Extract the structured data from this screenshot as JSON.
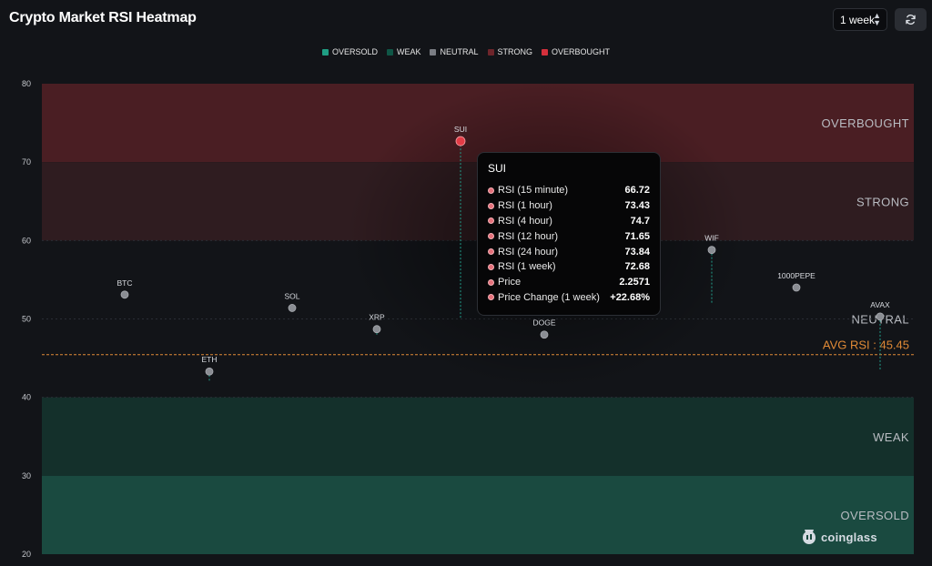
{
  "header": {
    "title": "Crypto Market RSI Heatmap",
    "period_value": "1 week",
    "refresh_icon": "refresh-icon"
  },
  "legend": [
    {
      "label": "OVERSOLD",
      "color": "#1f9e83"
    },
    {
      "label": "WEAK",
      "color": "#0f5646"
    },
    {
      "label": "NEUTRAL",
      "color": "#7b7e84"
    },
    {
      "label": "STRONG",
      "color": "#6e252b"
    },
    {
      "label": "OVERBOUGHT",
      "color": "#d5303c"
    }
  ],
  "colors": {
    "background": "#121418",
    "overbought_band": "#4a1e23",
    "strong_band": "#2f1c20",
    "weak_band": "#14302b",
    "oversold_band": "#1a4a40",
    "avg_line": "#e08a36",
    "point_neutral": "#8a8d93",
    "point_highlight": "#e23c46"
  },
  "chart_data": {
    "type": "scatter",
    "ylim": [
      20,
      80
    ],
    "yticks": [
      20,
      30,
      40,
      50,
      60,
      70,
      80
    ],
    "grid": false,
    "legend_position": "top-center",
    "zones": [
      {
        "label": "OVERBOUGHT",
        "min": 70,
        "max": 80
      },
      {
        "label": "STRONG",
        "min": 60,
        "max": 70
      },
      {
        "label": "NEUTRAL",
        "min": 40,
        "max": 60
      },
      {
        "label": "WEAK",
        "min": 30,
        "max": 40
      },
      {
        "label": "OVERSOLD",
        "min": 20,
        "max": 30
      }
    ],
    "average": {
      "label": "AVG RSI : 45.45",
      "value": 45.45
    },
    "points": [
      {
        "name": "BTC",
        "rsi": 53.1,
        "prev": 53.1
      },
      {
        "name": "ETH",
        "rsi": 43.3,
        "prev": 42.0
      },
      {
        "name": "SOL",
        "rsi": 51.4,
        "prev": 51.4
      },
      {
        "name": "XRP",
        "rsi": 48.7,
        "prev": 47.8
      },
      {
        "name": "SUI",
        "rsi": 72.68,
        "prev": 50.0,
        "highlight": true
      },
      {
        "name": "DOGE",
        "rsi": 48.0,
        "prev": 48.0
      },
      {
        "name": "WIF",
        "rsi": 58.8,
        "prev": 52.0
      },
      {
        "name": "1000PEPE",
        "rsi": 54.0,
        "prev": 54.0
      },
      {
        "name": "AVAX",
        "rsi": 50.3,
        "prev": 43.5
      }
    ]
  },
  "tooltip": {
    "title": "SUI",
    "rows": [
      {
        "label": "RSI (15 minute)",
        "value": "66.72"
      },
      {
        "label": "RSI (1 hour)",
        "value": "73.43"
      },
      {
        "label": "RSI (4 hour)",
        "value": "74.7"
      },
      {
        "label": "RSI (12 hour)",
        "value": "71.65"
      },
      {
        "label": "RSI (24 hour)",
        "value": "73.84"
      },
      {
        "label": "RSI (1 week)",
        "value": "72.68"
      },
      {
        "label": "Price",
        "value": "2.2571"
      },
      {
        "label": "Price Change (1 week)",
        "value": "+22.68%"
      }
    ]
  },
  "watermark": {
    "text": "coinglass",
    "icon": "coinglass-logo-icon"
  }
}
